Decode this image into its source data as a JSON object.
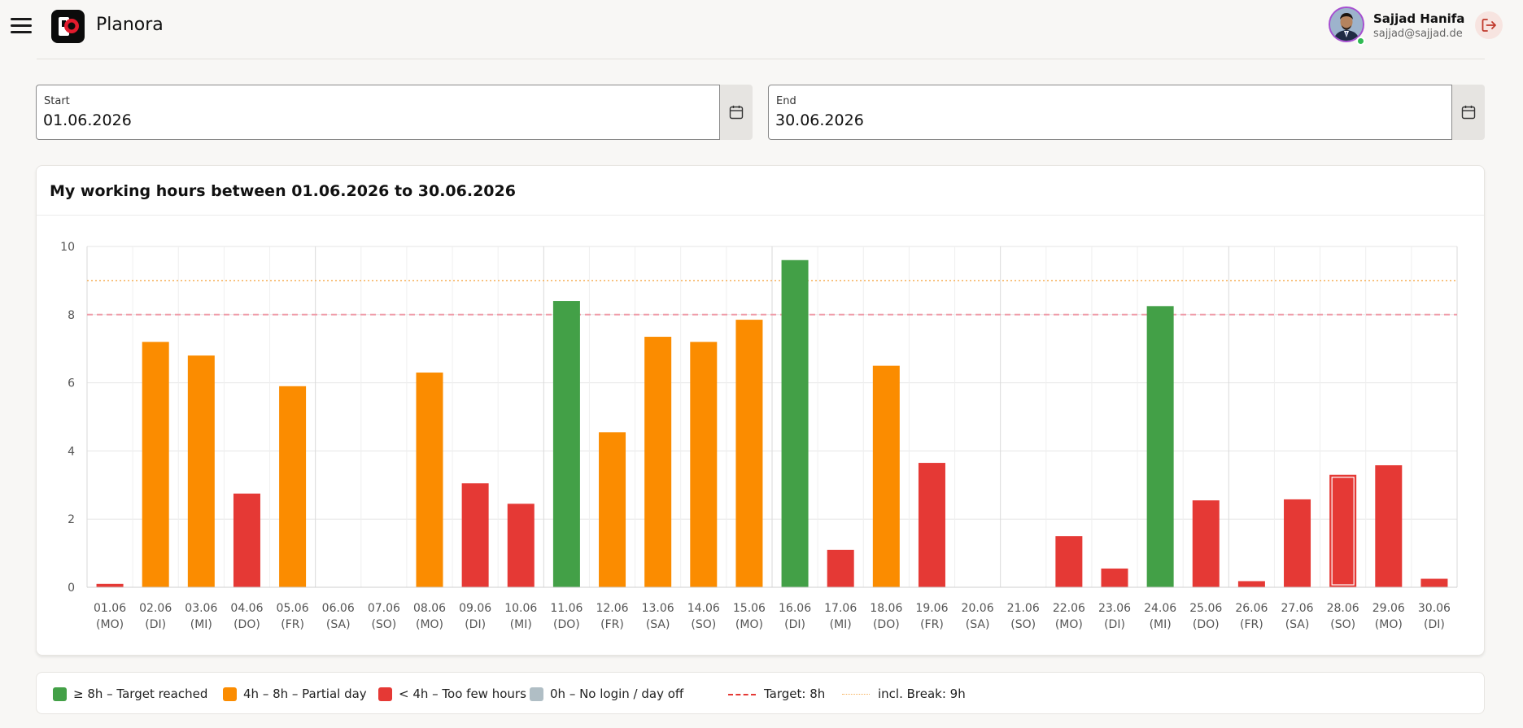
{
  "header": {
    "app_title": "Planora",
    "user_name": "Sajjad Hanifa",
    "user_email": "sajjad@sajjad.de",
    "icons": {
      "menu": "hamburger-icon",
      "logo": "planora-logo",
      "logout": "logout-icon",
      "calendar": "calendar-icon"
    }
  },
  "filters": {
    "start": {
      "label": "Start",
      "value": "01.06.2026"
    },
    "end": {
      "label": "End",
      "value": "30.06.2026"
    }
  },
  "chart_card": {
    "title": "My working hours between 01.06.2026 to 30.06.2026"
  },
  "colors": {
    "green": "#43a047",
    "orange": "#fb8c00",
    "red": "#e53935",
    "grey": "#b0bec5",
    "target_line": "#ef9aa7",
    "break_line": "#f6b15b"
  },
  "chart_data": {
    "type": "bar",
    "categories": [
      "01.06|(MO)",
      "02.06|(DI)",
      "03.06|(MI)",
      "04.06|(DO)",
      "05.06|(FR)",
      "06.06|(SA)",
      "07.06|(SO)",
      "08.06|(MO)",
      "09.06|(DI)",
      "10.06|(MI)",
      "11.06|(DO)",
      "12.06|(FR)",
      "13.06|(SA)",
      "14.06|(SO)",
      "15.06|(MO)",
      "16.06|(DI)",
      "17.06|(MI)",
      "18.06|(DO)",
      "19.06|(FR)",
      "20.06|(SA)",
      "21.06|(SO)",
      "22.06|(MO)",
      "23.06|(DI)",
      "24.06|(MI)",
      "25.06|(DO)",
      "26.06|(FR)",
      "27.06|(SA)",
      "28.06|(SO)",
      "29.06|(MO)",
      "30.06|(DI)"
    ],
    "values": [
      0.1,
      7.2,
      6.8,
      2.75,
      5.9,
      0,
      0,
      6.3,
      3.05,
      2.45,
      8.4,
      4.55,
      7.35,
      7.2,
      7.85,
      9.6,
      1.1,
      6.5,
      3.65,
      0,
      0,
      1.5,
      0.55,
      8.25,
      2.55,
      0.18,
      2.58,
      3.3,
      3.58,
      0.25
    ],
    "ylim": [
      0,
      10
    ],
    "yticks": [
      0,
      2,
      4,
      6,
      8,
      10
    ],
    "target_hours": 8,
    "break_hours": 9,
    "highlighted_index": 27,
    "grid": true,
    "legend": [
      {
        "label": "≥ 8h – Target reached",
        "kind": "swatch",
        "color": "#43a047"
      },
      {
        "label": "4h – 8h – Partial day",
        "kind": "swatch",
        "color": "#fb8c00"
      },
      {
        "label": "< 4h – Too few hours",
        "kind": "swatch",
        "color": "#e53935"
      },
      {
        "label": "0h – No login / day off",
        "kind": "swatch",
        "color": "#b0bec5"
      },
      {
        "label": "Target: 8h",
        "kind": "dashed",
        "color": "#e53935"
      },
      {
        "label": "incl. Break: 9h",
        "kind": "dotted",
        "color": "#f6b15b"
      }
    ]
  }
}
